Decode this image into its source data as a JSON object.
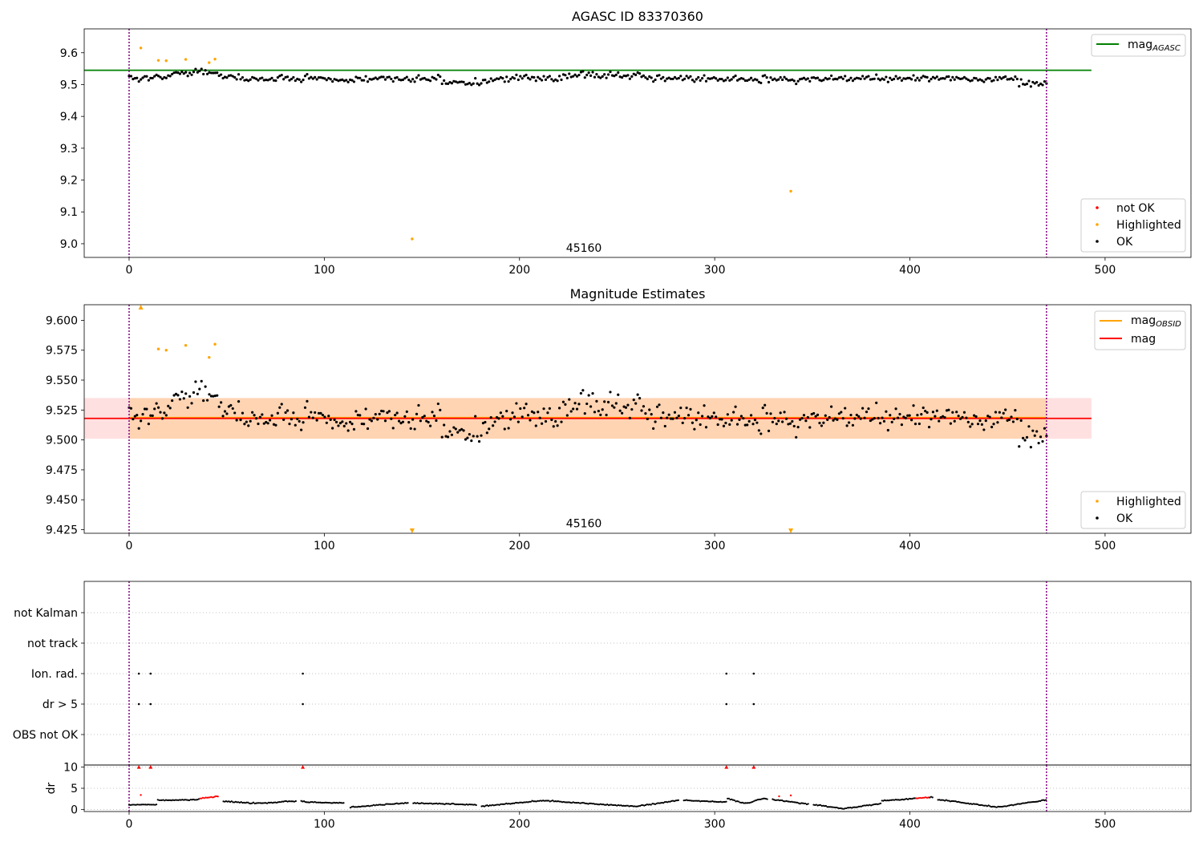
{
  "chart_data": [
    {
      "type": "scatter",
      "title": "AGASC ID 83370360",
      "xlim": [
        -23,
        544
      ],
      "ylim": [
        8.957,
        9.675
      ],
      "xticks": [
        0,
        100,
        200,
        300,
        400,
        500
      ],
      "yticks": [
        9.0,
        9.1,
        9.2,
        9.3,
        9.4,
        9.5,
        9.6
      ],
      "ytick_labels": [
        "9.0",
        "9.1",
        "9.2",
        "9.3",
        "9.4",
        "9.5",
        "9.6"
      ],
      "vlines": [
        0,
        470
      ],
      "annotation": {
        "text": "45160",
        "x": 233,
        "y": 8.975
      },
      "hline": {
        "name": "mag_AGASC",
        "legend_main": "mag",
        "legend_sub": "AGASC",
        "y": 9.545,
        "x_range": [
          -23,
          493
        ],
        "color": "#008000"
      },
      "legend_points": [
        {
          "label": "not OK",
          "color": "#ff0000"
        },
        {
          "label": "Highlighted",
          "color": "#ffa500"
        },
        {
          "label": "OK",
          "color": "#000000"
        }
      ],
      "highlighted_points": [
        [
          6,
          9.615
        ],
        [
          15,
          9.576
        ],
        [
          19,
          9.575
        ],
        [
          29,
          9.579
        ],
        [
          41,
          9.569
        ],
        [
          44,
          9.58
        ],
        [
          145,
          9.015
        ],
        [
          339,
          9.165
        ]
      ],
      "ok_series": {
        "x_start": 0,
        "x_end": 470,
        "n": 470,
        "baseline": 9.519
      }
    },
    {
      "type": "scatter",
      "title": "Magnitude Estimates",
      "xlim": [
        -23,
        544
      ],
      "ylim": [
        9.422,
        9.613
      ],
      "xticks": [
        0,
        100,
        200,
        300,
        400,
        500
      ],
      "yticks": [
        9.425,
        9.45,
        9.475,
        9.5,
        9.525,
        9.55,
        9.575,
        9.6
      ],
      "ytick_labels": [
        "9.425",
        "9.450",
        "9.475",
        "9.500",
        "9.525",
        "9.550",
        "9.575",
        "9.600"
      ],
      "vlines": [
        0,
        470
      ],
      "annotation": {
        "text": "45160",
        "x": 233,
        "y": 9.427
      },
      "mag_band": {
        "y": 9.518,
        "lower": 9.501,
        "upper": 9.535,
        "x_range": [
          -23,
          493
        ],
        "color": "#ff0000"
      },
      "mag_obsid_band": {
        "y": 9.518,
        "lower": 9.501,
        "upper": 9.535,
        "x_range": [
          0,
          470
        ],
        "color": "#ffa500"
      },
      "legend_lines": [
        {
          "label_main": "mag",
          "label_sub": "OBSID",
          "color": "#ffa500"
        },
        {
          "label_main": "mag",
          "label_sub": "",
          "color": "#ff0000"
        }
      ],
      "legend_points": [
        {
          "label": "Highlighted",
          "color": "#ffa500"
        },
        {
          "label": "OK",
          "color": "#000000"
        }
      ],
      "highlighted_points": [
        [
          15,
          9.576
        ],
        [
          19,
          9.575
        ],
        [
          29,
          9.579
        ],
        [
          41,
          9.569
        ],
        [
          44,
          9.58
        ]
      ],
      "out_of_range_markers": [
        {
          "x": 6,
          "direction": "up"
        },
        {
          "x": 145,
          "direction": "down"
        },
        {
          "x": 339,
          "direction": "down"
        }
      ],
      "ok_series": {
        "x_start": 0,
        "x_end": 470,
        "n": 470,
        "baseline": 9.519
      }
    },
    {
      "type": "scatter",
      "title": "",
      "xlim": [
        -23,
        544
      ],
      "vlines": [
        0,
        470
      ],
      "categories": [
        "not Kalman",
        "not track",
        "Ion. rad.",
        "dr > 5",
        "OBS not OK"
      ],
      "flags": {
        "not Kalman": [],
        "not track": [],
        "Ion. rad.": [
          5,
          11,
          89,
          306,
          320
        ],
        "dr > 5": [
          5,
          11,
          89,
          306,
          320
        ],
        "OBS not OK": []
      }
    },
    {
      "type": "scatter",
      "title": "",
      "ylabel": "dr",
      "xlim": [
        -23,
        544
      ],
      "ylim": [
        -0.5,
        10.5
      ],
      "xticks": [
        0,
        100,
        200,
        300,
        400,
        500
      ],
      "yticks": [
        0,
        5,
        10
      ],
      "ytick_labels": [
        "0",
        "5",
        "10"
      ],
      "vlines": [
        0,
        470
      ],
      "capped_markers": [
        5,
        11,
        89,
        306,
        320
      ],
      "red_segments": [
        [
          36,
          46
        ],
        [
          403,
          410
        ]
      ],
      "red_points": [
        [
          6,
          3.4
        ],
        [
          333,
          3.1
        ],
        [
          339,
          3.3
        ]
      ]
    }
  ]
}
